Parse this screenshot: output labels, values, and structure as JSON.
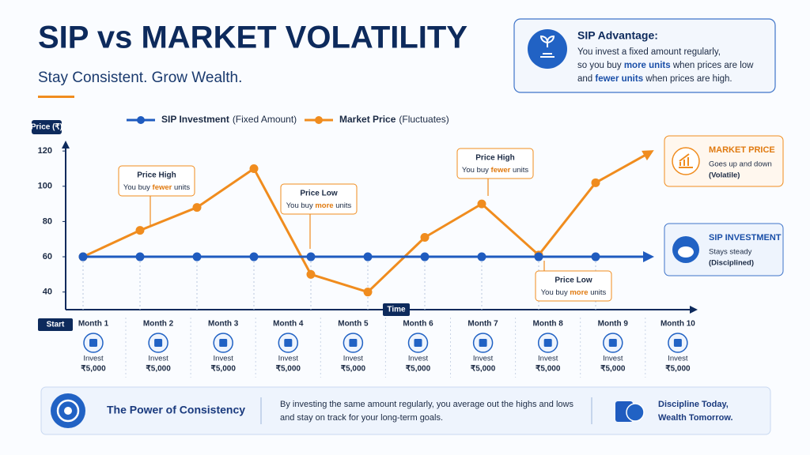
{
  "header": {
    "title": "SIP vs MARKET VOLATILITY",
    "subtitle": "Stay Consistent. Grow Wealth."
  },
  "advantage": {
    "title": "SIP Advantage:",
    "lines": [
      [
        "You invest a fixed amount regularly,"
      ],
      [
        "so you buy ",
        "more units",
        " when prices are low"
      ],
      [
        "and ",
        "fewer units",
        " when prices are high."
      ]
    ]
  },
  "chart_data": {
    "type": "line",
    "y_label": "Price (₹)",
    "x_label": "Time",
    "start_label": "Start",
    "categories": [
      "Month 1",
      "Month 2",
      "Month 3",
      "Month 4",
      "Month 5",
      "Month 6",
      "Month 7",
      "Month 8",
      "Month 9",
      "Month 10",
      null
    ],
    "series": [
      {
        "name": "SIP Investment",
        "note": "(Fixed Amount)",
        "color": "#1f5bbf",
        "values": [
          60,
          60,
          60,
          60,
          60,
          60,
          60,
          60,
          60,
          60,
          60
        ]
      },
      {
        "name": "Market Price",
        "note": "(Fluctuates)",
        "color": "#f08c1e",
        "values": [
          60,
          75,
          88,
          110,
          50,
          40,
          71,
          90,
          61,
          102,
          120
        ]
      }
    ],
    "ylim": [
      30,
      125
    ],
    "yticks": [
      40,
      60,
      80,
      100,
      120
    ],
    "grid": false,
    "annotations": [
      {
        "title": "Price High",
        "text": [
          "You buy ",
          "fewer",
          " units"
        ]
      },
      {
        "title": "Price Low",
        "text": [
          "You buy ",
          "more",
          " units"
        ]
      },
      {
        "title": "Price High",
        "text": [
          "You buy ",
          "fewer",
          " units"
        ]
      },
      {
        "title": "Price Low",
        "text": [
          "You buy ",
          "more",
          " units"
        ]
      }
    ],
    "invest_label": "Invest",
    "invest_amount": "₹5,000"
  },
  "cards": [
    {
      "title": "MARKET PRICE",
      "lines": [
        "Goes up and down",
        "(Volatile)"
      ]
    },
    {
      "title": "SIP INVESTMENT",
      "lines": [
        "Stays steady",
        "(Disciplined)"
      ]
    }
  ],
  "footer": {
    "title": "The Power of Consistency",
    "lines": [
      "By investing the same amount regularly, you average out the highs and lows",
      "and stay on track for your long-term goals."
    ],
    "motto": [
      "Discipline Today,",
      "Wealth Tomorrow."
    ]
  }
}
